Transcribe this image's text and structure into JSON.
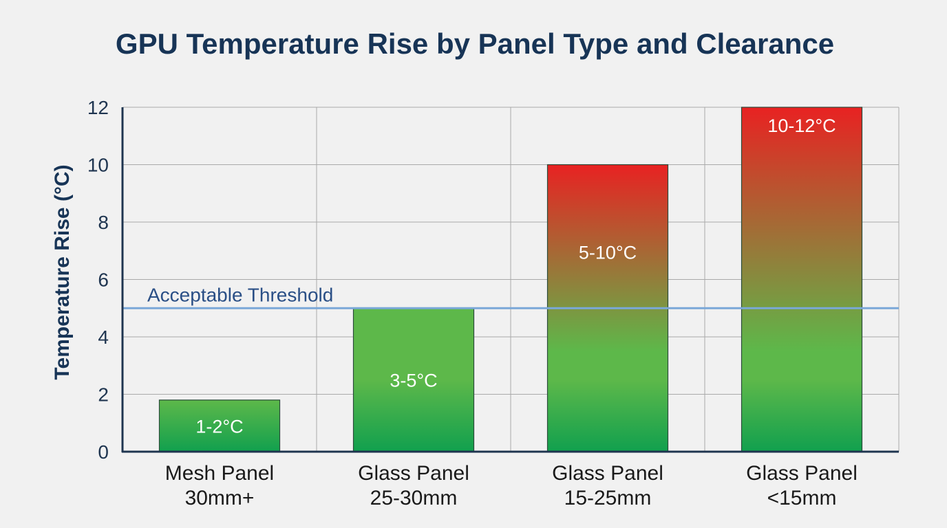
{
  "chart_data": {
    "type": "bar",
    "title": "GPU Temperature Rise by Panel Type and Clearance",
    "xlabel": "",
    "ylabel": "Temperature Rise (°C)",
    "ylim": [
      0,
      12
    ],
    "yticks": [
      "0",
      "2",
      "4",
      "6",
      "8",
      "10",
      "12"
    ],
    "grid": true,
    "categories": [
      [
        "Mesh Panel",
        "30mm+"
      ],
      [
        "Glass Panel",
        "25-30mm"
      ],
      [
        "Glass Panel",
        "15-25mm"
      ],
      [
        "Glass Panel",
        "<15mm"
      ]
    ],
    "values": [
      1.8,
      5,
      10,
      12
    ],
    "data_labels": [
      "1-2°C",
      "3-5°C",
      "5-10°C",
      "10-12°C"
    ],
    "threshold": {
      "value": 5,
      "label": "Acceptable Threshold",
      "color": "#7aa8d8"
    },
    "colors": {
      "title": "#173456",
      "axis": "#1f3550",
      "grid": "#a9a9a9",
      "bar_low": "#11a04e",
      "bar_mid": "#5db84a",
      "bar_high": "#e82222"
    }
  }
}
